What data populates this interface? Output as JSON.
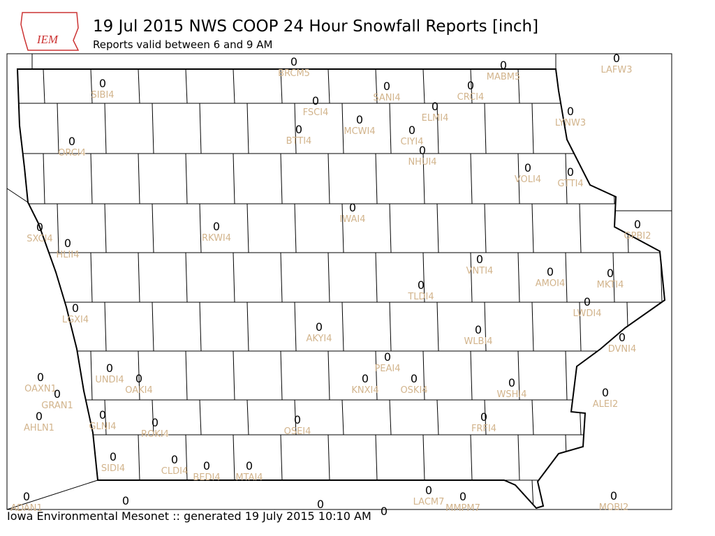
{
  "logo_text": "IEM",
  "header": {
    "title": "19 Jul 2015 NWS COOP 24 Hour Snowfall Reports [inch]",
    "subtitle": "Reports valid between 6 and 9 AM"
  },
  "footer": "Iowa Environmental Mesonet :: generated 19 July 2015 10:10 AM",
  "stations": [
    {
      "value": 0,
      "id": "BRCM5"
    },
    {
      "value": 0,
      "id": "LAFW3"
    },
    {
      "value": 0,
      "id": "MABM5"
    },
    {
      "value": 0,
      "id": "SIBI4"
    },
    {
      "value": 0,
      "id": "SANI4"
    },
    {
      "value": 0,
      "id": "CRCI4"
    },
    {
      "value": 0,
      "id": "FSCI4"
    },
    {
      "value": 0,
      "id": "ELMI4"
    },
    {
      "value": 0,
      "id": "LYNW3"
    },
    {
      "value": 0,
      "id": "MCWI4"
    },
    {
      "value": 0,
      "id": "BTTI4"
    },
    {
      "value": 0,
      "id": "CIYI4"
    },
    {
      "value": 0,
      "id": "ORCI4"
    },
    {
      "value": 0,
      "id": "NHUI4"
    },
    {
      "value": 0,
      "id": "VOLI4"
    },
    {
      "value": 0,
      "id": "GTTI4"
    },
    {
      "value": 0,
      "id": "IWAI4"
    },
    {
      "value": 0,
      "id": "GPBI2"
    },
    {
      "value": 0,
      "id": "SXCI4"
    },
    {
      "value": 0,
      "id": "RKWI4"
    },
    {
      "value": 0,
      "id": "HLII4"
    },
    {
      "value": 0,
      "id": "VNTI4"
    },
    {
      "value": 0,
      "id": "AMOI4"
    },
    {
      "value": 0,
      "id": "MKTI4"
    },
    {
      "value": 0,
      "id": "TLDI4"
    },
    {
      "value": 0,
      "id": "LWDI4"
    },
    {
      "value": 0,
      "id": "LGXI4"
    },
    {
      "value": 0,
      "id": "AKYI4"
    },
    {
      "value": 0,
      "id": "WLBI4"
    },
    {
      "value": 0,
      "id": "DVNI4"
    },
    {
      "value": 0,
      "id": "PEAI4"
    },
    {
      "value": 0,
      "id": "UNDI4"
    },
    {
      "value": 0,
      "id": "OAXN1"
    },
    {
      "value": 0,
      "id": "OAKI4"
    },
    {
      "value": 0,
      "id": "KNXI4"
    },
    {
      "value": 0,
      "id": "OSKI4"
    },
    {
      "value": 0,
      "id": "WSHI4"
    },
    {
      "value": 0,
      "id": "ALEI2"
    },
    {
      "value": 0,
      "id": "GRAN1"
    },
    {
      "value": 0,
      "id": "GLNI4"
    },
    {
      "value": 0,
      "id": "AHLN1"
    },
    {
      "value": 0,
      "id": "FRFI4"
    },
    {
      "value": 0,
      "id": "OSEI4"
    },
    {
      "value": 0,
      "id": "ROKI4"
    },
    {
      "value": 0,
      "id": "SIDI4"
    },
    {
      "value": 0,
      "id": "CLDI4"
    },
    {
      "value": 0,
      "id": "BEDI4"
    },
    {
      "value": 0,
      "id": "MTAI4"
    },
    {
      "value": 0,
      "id": "LACM7"
    },
    {
      "value": 0,
      "id": "MMPM7"
    },
    {
      "value": 0,
      "id": "MOBI2"
    },
    {
      "value": 0,
      "id": "ADAN1"
    },
    {
      "value": 0
    },
    {
      "value": 0
    },
    {
      "value": 0
    }
  ]
}
